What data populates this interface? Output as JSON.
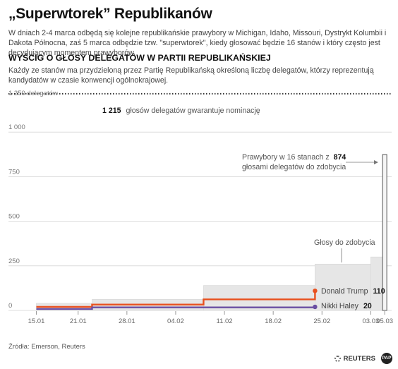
{
  "title": "„Superwtorek” Republikanów",
  "description": "W dniach 2-4 marca odbędą się kolejne republikańskie prawybory w Michigan, Idaho, Missouri, Dystrykt Kolumbii i Dakota Północna, zaś 5 marca odbędzie tzw. \"superwtorek\", kiedy głosować będzie 16 stanów i który często jest decydującym momentem prawyborów.",
  "chart_title": "WYŚCIG O GŁOSY DELEGATÓW W PARTII REPUBLIKAŃSKIEJ",
  "chart_description": "Każdy ze stanów ma przydzieloną przez Partię Republikańską określoną liczbę delegatów, którzy reprezentują kandydatów w czasie konwencji ogólnokrajowej.",
  "source": "Źródła: Emerson, Reuters",
  "logos": {
    "reuters": "REUTERS",
    "pap": "PAP"
  },
  "chart_data": {
    "type": "line",
    "y_unit_label": "1 250 delegatów",
    "ylim": [
      0,
      1250
    ],
    "y_ticks": [
      {
        "value": 1000,
        "label": "1 000"
      },
      {
        "value": 750,
        "label": "750"
      },
      {
        "value": 500,
        "label": "500"
      },
      {
        "value": 250,
        "label": "250"
      },
      {
        "value": 0,
        "label": "0"
      }
    ],
    "x_ticks": [
      "15.01",
      "21.01",
      "28.01",
      "04.02",
      "11.02",
      "18.02",
      "25.02",
      "03.03",
      "05.03"
    ],
    "threshold": {
      "value": 1215,
      "number": "1 215",
      "label": "głosów delegatów gwarantuje nominację"
    },
    "series": [
      {
        "name": "Donald Trump",
        "final_value": "110",
        "color": "#e8501e",
        "points": [
          {
            "date": "15.01",
            "value": 20
          },
          {
            "date": "23.01",
            "value": 33
          },
          {
            "date": "08.02",
            "value": 62
          },
          {
            "date": "24.02",
            "value": 110
          }
        ]
      },
      {
        "name": "Nikki Haley",
        "final_value": "20",
        "color": "#6a4fa3",
        "points": [
          {
            "date": "15.01",
            "value": 8
          },
          {
            "date": "23.01",
            "value": 17
          },
          {
            "date": "24.02",
            "value": 20
          }
        ]
      }
    ],
    "available_votes": {
      "label": "Głosy do zdobycia",
      "color": "#e6e6e6",
      "steps": [
        {
          "from": "15.01",
          "to": "23.01",
          "value": 40
        },
        {
          "from": "23.01",
          "to": "08.02",
          "value": 62
        },
        {
          "from": "08.02",
          "to": "24.02",
          "value": 140
        },
        {
          "from": "24.02",
          "to": "03.03",
          "value": 260
        },
        {
          "from": "03.03",
          "to": "05.03",
          "value": 300
        }
      ]
    },
    "super_tuesday": {
      "date": "05.03",
      "value": 874,
      "text_before": "Prawybory w 16 stanach z",
      "number": "874",
      "text_after": "głosami delegatów do zdobycia"
    }
  }
}
